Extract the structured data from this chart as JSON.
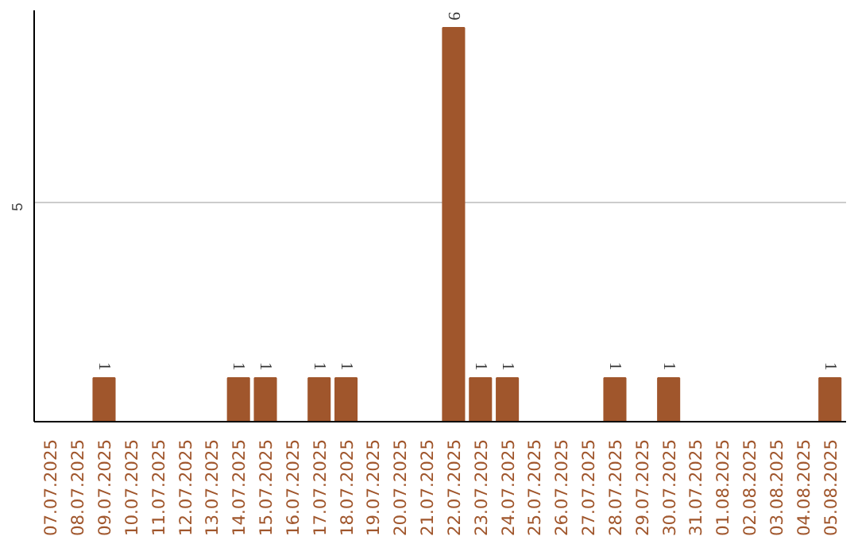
{
  "chart_data": {
    "type": "bar",
    "categories": [
      "07.07.2025",
      "08.07.2025",
      "09.07.2025",
      "10.07.2025",
      "11.07.2025",
      "12.07.2025",
      "13.07.2025",
      "14.07.2025",
      "15.07.2025",
      "16.07.2025",
      "17.07.2025",
      "18.07.2025",
      "19.07.2025",
      "20.07.2025",
      "21.07.2025",
      "22.07.2025",
      "23.07.2025",
      "24.07.2025",
      "25.07.2025",
      "26.07.2025",
      "27.07.2025",
      "28.07.2025",
      "29.07.2025",
      "30.07.2025",
      "31.07.2025",
      "01.08.2025",
      "02.08.2025",
      "03.08.2025",
      "04.08.2025",
      "05.08.2025"
    ],
    "values": [
      0,
      0,
      1,
      0,
      0,
      0,
      0,
      1,
      1,
      0,
      1,
      1,
      0,
      0,
      0,
      9,
      1,
      1,
      0,
      0,
      0,
      1,
      0,
      1,
      0,
      0,
      0,
      0,
      0,
      1
    ],
    "value_labels": [
      null,
      null,
      "1",
      null,
      null,
      null,
      null,
      "1",
      "1",
      null,
      "1",
      "1",
      null,
      null,
      null,
      "9",
      "1",
      "1",
      null,
      null,
      null,
      "1",
      null,
      "1",
      null,
      null,
      null,
      null,
      null,
      "1"
    ],
    "color": "#a0562c",
    "ylim": [
      0,
      9.4
    ],
    "yticks": [
      5
    ],
    "grid": "y"
  }
}
